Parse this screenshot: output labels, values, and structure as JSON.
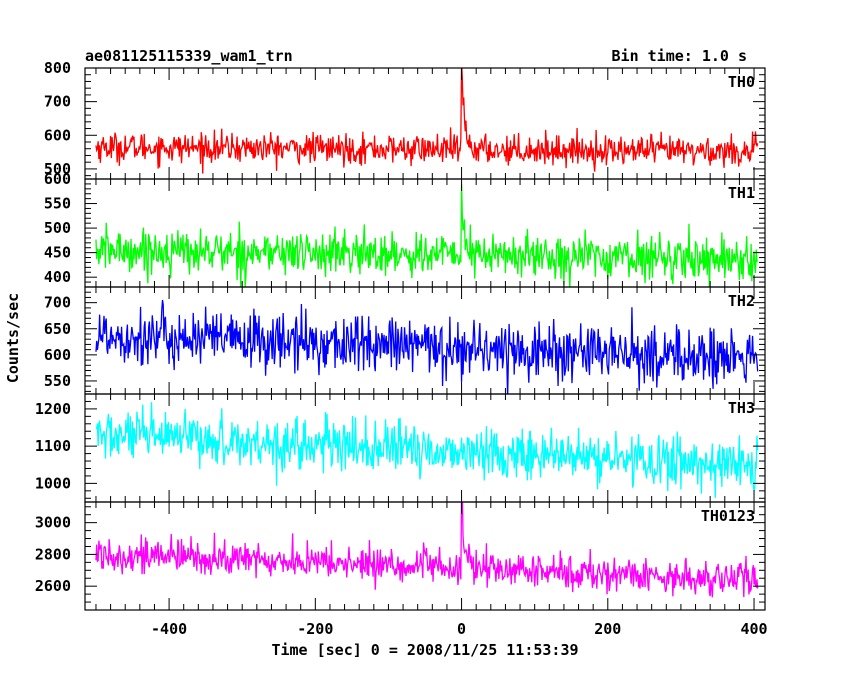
{
  "header": {
    "title": "ae081125115339_wam1_trn",
    "bin_time": "Bin time: 1.0 s"
  },
  "chart_data": {
    "type": "line",
    "xlabel": "Time [sec] 0 = 2008/11/25 11:53:39",
    "ylabel": "Counts/sec",
    "xlim": [
      -515,
      415
    ],
    "x_ticks": [
      -400,
      -200,
      0,
      200,
      400
    ],
    "x_range": [
      -500,
      405
    ],
    "panels": [
      {
        "label": "TH0",
        "color": "#ff0000",
        "ylim": [
          470,
          800
        ],
        "y_ticks": [
          500,
          600,
          700,
          800
        ],
        "y_minor": 20,
        "series": {
          "start_mean": 565,
          "end_mean": 552,
          "noise": 22,
          "peak": {
            "x": 0,
            "value": 800,
            "decay": 4
          }
        }
      },
      {
        "label": "TH1",
        "color": "#00ff00",
        "ylim": [
          380,
          600
        ],
        "y_ticks": [
          400,
          450,
          500,
          550,
          600
        ],
        "y_minor": 10,
        "series": {
          "start_mean": 455,
          "end_mean": 438,
          "noise": 22,
          "peak": {
            "x": 0,
            "value": 592,
            "decay": 3
          }
        }
      },
      {
        "label": "TH2",
        "color": "#0000ff",
        "ylim": [
          525,
          730
        ],
        "y_ticks": [
          550,
          600,
          650,
          700
        ],
        "y_minor": 10,
        "series": {
          "start_mean": 638,
          "end_mean": 592,
          "noise": 28,
          "peak": null
        }
      },
      {
        "label": "TH3",
        "color": "#00ffff",
        "ylim": [
          950,
          1240
        ],
        "y_ticks": [
          1000,
          1100,
          1200
        ],
        "y_minor": 20,
        "series": {
          "start_mean": 1130,
          "end_mean": 1048,
          "noise": 34,
          "peak": null
        }
      },
      {
        "label": "TH0123",
        "color": "#ff00ff",
        "ylim": [
          2450,
          3130
        ],
        "y_ticks": [
          2600,
          2800,
          3000
        ],
        "y_minor": 50,
        "series": {
          "start_mean": 2805,
          "end_mean": 2640,
          "noise": 55,
          "peak": {
            "x": 0,
            "value": 3130,
            "decay": 4
          }
        }
      }
    ]
  }
}
